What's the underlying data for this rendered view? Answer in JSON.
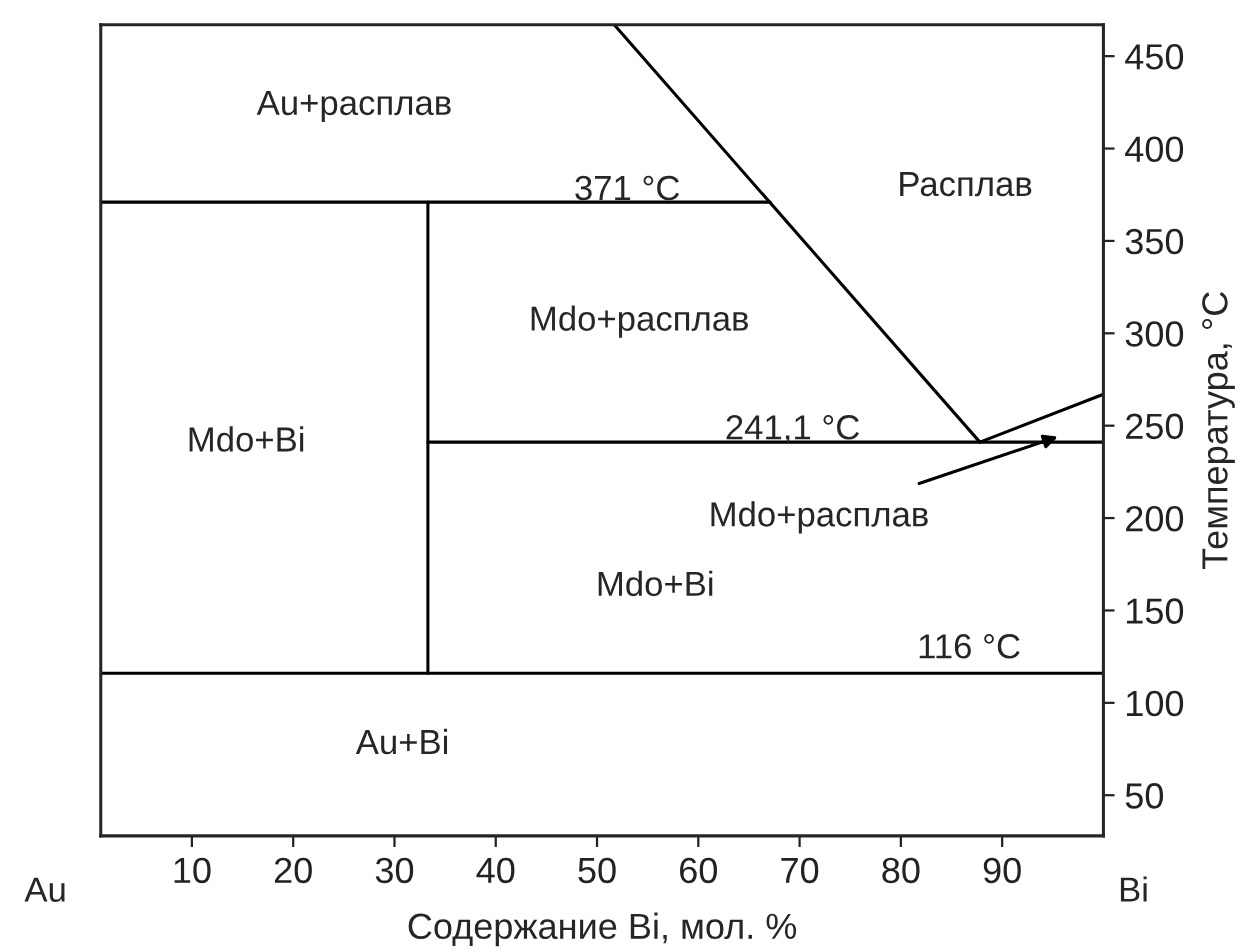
{
  "chart_data": {
    "type": "line",
    "xlabel": "Содержание Bi, мол. %",
    "ylabel": "Температура, °C",
    "xlim": [
      1,
      100
    ],
    "ylim": [
      28,
      467
    ],
    "xticks": [
      10,
      20,
      30,
      40,
      50,
      60,
      70,
      80,
      90
    ],
    "yticks": [
      50,
      100,
      150,
      200,
      250,
      300,
      350,
      400,
      450
    ],
    "grid": false,
    "marker": "none",
    "line_style": "solid",
    "series": [
      {
        "color": "#000000",
        "x": [
          1,
          67.1
        ],
        "values": [
          371,
          371
        ]
      },
      {
        "color": "#000000",
        "x": [
          51.7,
          87.8
        ],
        "values": [
          467,
          241.1
        ]
      },
      {
        "color": "#000000",
        "x": [
          87.8,
          100
        ],
        "values": [
          241.1,
          267
        ]
      },
      {
        "color": "#000000",
        "x": [
          33.3,
          100
        ],
        "values": [
          241.1,
          241.1
        ]
      },
      {
        "color": "#000000",
        "x": [
          33.3,
          33.3
        ],
        "values": [
          116,
          371
        ]
      },
      {
        "color": "#000000",
        "x": [
          1,
          100
        ],
        "values": [
          116,
          116
        ]
      }
    ],
    "annotations": [
      "Au+расплав",
      "Расплав",
      "371 °C",
      "Mdo+расплав",
      "Mdo+Bi",
      "241,1 °C",
      {
        "text": "Mdo+расплав",
        "x": 95.5,
        "y": 244
      },
      "Mdo+Bi",
      "116 °C",
      "Au+Bi",
      "Au",
      "Bi"
    ]
  }
}
